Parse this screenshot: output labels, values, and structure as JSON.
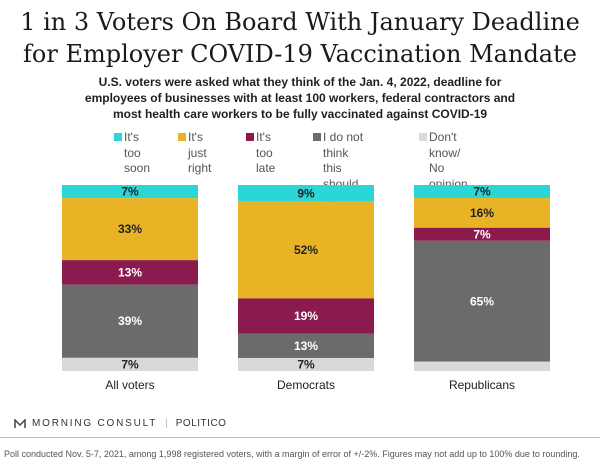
{
  "header": {
    "title_line1": "1 in 3 Voters On Board With January Deadline",
    "title_line2": "for Employer COVID-19 Vaccination Mandate",
    "subtitle_line1": "U.S. voters were asked what they think of the Jan. 4, 2022, deadline for",
    "subtitle_line2": "employees of businesses with at least 100 workers, federal contractors and",
    "subtitle_line3": "most health care workers to be fully vaccinated against COVID-19"
  },
  "colors": {
    "too_soon": "#2ad6d6",
    "just_right": "#e8b325",
    "too_late": "#8b1a4e",
    "should_not": "#6b6b6b",
    "dont_know": "#d9d9d9",
    "label_dark": "#222222",
    "label_light": "#ffffff"
  },
  "legend": [
    {
      "key": "too_soon",
      "label": "It's too\nsoon"
    },
    {
      "key": "just_right",
      "label": "It's just\nright"
    },
    {
      "key": "too_late",
      "label": "It's too\nlate"
    },
    {
      "key": "should_not",
      "label": "I do not think\nthis should be\nrequired"
    },
    {
      "key": "dont_know",
      "label": "Don't know/\nNo opinion"
    }
  ],
  "chart_data": {
    "type": "bar",
    "stacked": true,
    "orientation": "vertical",
    "categories": [
      "All voters",
      "Democrats",
      "Republicans"
    ],
    "series": [
      {
        "key": "too_soon",
        "name": "It's too soon",
        "values": [
          7,
          9,
          7
        ],
        "labels": [
          "7%",
          "9%",
          "7%"
        ]
      },
      {
        "key": "just_right",
        "name": "It's just right",
        "values": [
          33,
          52,
          16
        ],
        "labels": [
          "33%",
          "52%",
          "16%"
        ]
      },
      {
        "key": "too_late",
        "name": "It's too late",
        "values": [
          13,
          19,
          7
        ],
        "labels": [
          "13%",
          "19%",
          "7%"
        ]
      },
      {
        "key": "should_not",
        "name": "I do not think this should be required",
        "values": [
          39,
          13,
          65
        ],
        "labels": [
          "39%",
          "13%",
          "65%"
        ]
      },
      {
        "key": "dont_know",
        "name": "Don't know/ No opinion",
        "values": [
          7,
          7,
          5
        ],
        "labels": [
          "7%",
          "7%",
          ""
        ]
      }
    ],
    "legend_position": "top"
  },
  "footer": {
    "brand": "MORNING CONSULT",
    "partner": "POLITICO",
    "separator": "|",
    "note": "Poll conducted Nov. 5-7, 2021, among 1,998 registered voters, with a margin of error of +/-2%. Figures may not add up to 100% due to rounding."
  }
}
